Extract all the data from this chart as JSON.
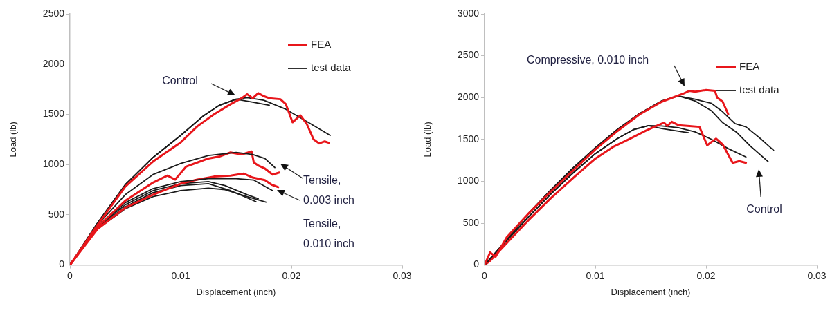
{
  "chart_data": [
    {
      "type": "line",
      "xlabel": "Displacement (inch)",
      "ylabel": "Load (lb)",
      "xlim": [
        0,
        0.03
      ],
      "xticks": [
        0,
        0.01,
        0.02,
        0.03
      ],
      "ylim": [
        0,
        2500
      ],
      "yticks": [
        0,
        500,
        1000,
        1500,
        2000,
        2500
      ],
      "grid": false,
      "legend": "top right",
      "marker": "none",
      "line_style": "solid",
      "annotations": [
        "Control",
        "Tensile,\n0.003 inch",
        "Tensile,\n0.010 inch"
      ],
      "series": [
        {
          "name": "FEA",
          "color": "#e8161b",
          "x": [
            0,
            0.0025,
            0.005,
            0.0075,
            0.01,
            0.0115,
            0.013,
            0.0145,
            0.0155,
            0.016,
            0.0165,
            0.017,
            0.0175,
            0.018,
            0.019,
            0.0195,
            0.0201,
            0.0208,
            0.0214,
            0.022,
            0.0225,
            0.023,
            0.0234
          ],
          "values": [
            0,
            400,
            780,
            1030,
            1220,
            1380,
            1500,
            1600,
            1660,
            1700,
            1660,
            1710,
            1680,
            1660,
            1650,
            1600,
            1420,
            1490,
            1400,
            1250,
            1210,
            1230,
            1215
          ]
        },
        {
          "name": "test data",
          "color": "#1a1a1a",
          "x": [
            0,
            0.0025,
            0.005,
            0.0075,
            0.01,
            0.012,
            0.0135,
            0.015,
            0.016,
            0.0175,
            0.0195,
            0.0215,
            0.0235
          ],
          "values": [
            0,
            420,
            800,
            1070,
            1290,
            1480,
            1590,
            1650,
            1665,
            1640,
            1550,
            1420,
            1290
          ]
        },
        {
          "color": "#1a1a1a",
          "x": [
            0,
            0.0025,
            0.005,
            0.0075,
            0.01,
            0.012,
            0.0135,
            0.015,
            0.0165,
            0.018
          ],
          "values": [
            0,
            420,
            800,
            1070,
            1290,
            1480,
            1590,
            1650,
            1620,
            1590
          ]
        },
        {
          "color": "#1a1a1a",
          "x": [
            0,
            0.0025,
            0.005,
            0.0075,
            0.01,
            0.0125,
            0.015,
            0.0165,
            0.0176,
            0.0185
          ],
          "values": [
            0,
            400,
            700,
            900,
            1010,
            1090,
            1120,
            1100,
            1060,
            970
          ]
        },
        {
          "color": "#e8161b",
          "x": [
            0,
            0.0025,
            0.005,
            0.0075,
            0.0088,
            0.0095,
            0.0105,
            0.0115,
            0.0125,
            0.0135,
            0.0145,
            0.0155,
            0.0164,
            0.0166,
            0.017,
            0.0176,
            0.0183,
            0.0189
          ],
          "values": [
            0,
            380,
            640,
            820,
            890,
            850,
            980,
            1020,
            1060,
            1080,
            1120,
            1100,
            1130,
            1020,
            990,
            960,
            900,
            920
          ]
        },
        {
          "color": "#1a1a1a",
          "x": [
            0,
            0.0025,
            0.005,
            0.0075,
            0.01,
            0.0125,
            0.015,
            0.0166,
            0.0183
          ],
          "values": [
            0,
            380,
            620,
            760,
            830,
            860,
            860,
            845,
            740
          ]
        },
        {
          "color": "#e8161b",
          "x": [
            0,
            0.0025,
            0.005,
            0.0075,
            0.01,
            0.0115,
            0.013,
            0.0145,
            0.0157,
            0.0165,
            0.0176,
            0.0182,
            0.0188
          ],
          "values": [
            0,
            360,
            570,
            700,
            810,
            850,
            880,
            890,
            910,
            870,
            845,
            800,
            775
          ]
        },
        {
          "color": "#1a1a1a",
          "x": [
            0,
            0.0025,
            0.005,
            0.0075,
            0.01,
            0.0125,
            0.014,
            0.016,
            0.0177
          ],
          "values": [
            0,
            360,
            560,
            680,
            740,
            765,
            750,
            680,
            625
          ]
        },
        {
          "color": "#1a1a1a",
          "x": [
            0,
            0.0025,
            0.005,
            0.0075,
            0.01,
            0.0125,
            0.014,
            0.016,
            0.017
          ],
          "values": [
            0,
            380,
            600,
            740,
            810,
            830,
            790,
            700,
            660
          ]
        },
        {
          "color": "#1a1a1a",
          "x": [
            0,
            0.0025,
            0.005,
            0.0075,
            0.01,
            0.0125,
            0.0145,
            0.0168
          ],
          "values": [
            0,
            370,
            580,
            720,
            790,
            810,
            740,
            630
          ]
        }
      ]
    },
    {
      "type": "line",
      "xlabel": "Displacement (inch)",
      "ylabel": "Load (lb)",
      "xlim": [
        0,
        0.03
      ],
      "xticks": [
        0,
        0.01,
        0.02,
        0.03
      ],
      "ylim": [
        0,
        3000
      ],
      "yticks": [
        0,
        500,
        1000,
        1500,
        2000,
        2500,
        3000
      ],
      "grid": false,
      "legend": "top right",
      "marker": "none",
      "line_style": "solid",
      "annotations": [
        "Compressive, 0.010 inch",
        "Control"
      ],
      "series": [
        {
          "name": "FEA",
          "color": "#e8161b",
          "x": [
            0,
            0.0005,
            0.001,
            0.002,
            0.004,
            0.006,
            0.008,
            0.01,
            0.012,
            0.014,
            0.016,
            0.018,
            0.0185,
            0.019,
            0.02,
            0.0208,
            0.021,
            0.0215,
            0.022
          ],
          "values": [
            0,
            150,
            100,
            330,
            620,
            880,
            1130,
            1380,
            1600,
            1800,
            1950,
            2050,
            2080,
            2070,
            2090,
            2080,
            2000,
            1950,
            1800
          ]
        },
        {
          "name": "test data",
          "color": "#1a1a1a",
          "x": [
            0,
            0.002,
            0.004,
            0.006,
            0.008,
            0.01,
            0.012,
            0.014,
            0.016,
            0.0175,
            0.019,
            0.0205,
            0.0215,
            0.0226,
            0.0236,
            0.025,
            0.0261
          ],
          "values": [
            0,
            300,
            620,
            900,
            1160,
            1400,
            1620,
            1810,
            1960,
            2020,
            1980,
            1930,
            1830,
            1690,
            1650,
            1500,
            1370
          ]
        },
        {
          "color": "#1a1a1a",
          "x": [
            0,
            0.002,
            0.004,
            0.006,
            0.008,
            0.01,
            0.012,
            0.014,
            0.016,
            0.0175,
            0.019,
            0.0205,
            0.0215,
            0.0228,
            0.024,
            0.0256
          ],
          "values": [
            0,
            300,
            620,
            900,
            1160,
            1400,
            1620,
            1810,
            1960,
            2020,
            1960,
            1840,
            1700,
            1580,
            1420,
            1235
          ]
        },
        {
          "color": "#e8161b",
          "x": [
            0,
            0.0005,
            0.002,
            0.004,
            0.006,
            0.008,
            0.01,
            0.0116,
            0.013,
            0.0145,
            0.0155,
            0.0162,
            0.0165,
            0.0169,
            0.0175,
            0.0185,
            0.0194,
            0.0201,
            0.0209,
            0.0215,
            0.0224,
            0.023,
            0.0236
          ],
          "values": [
            0,
            50,
            260,
            540,
            800,
            1040,
            1270,
            1410,
            1500,
            1600,
            1660,
            1700,
            1660,
            1710,
            1670,
            1660,
            1650,
            1430,
            1510,
            1440,
            1220,
            1240,
            1220
          ]
        },
        {
          "color": "#1a1a1a",
          "x": [
            0,
            0.002,
            0.004,
            0.006,
            0.008,
            0.01,
            0.012,
            0.0135,
            0.0148,
            0.016,
            0.0175,
            0.019,
            0.0205,
            0.022,
            0.0236
          ],
          "values": [
            0,
            290,
            580,
            850,
            1100,
            1330,
            1510,
            1620,
            1665,
            1660,
            1640,
            1590,
            1500,
            1390,
            1290
          ]
        },
        {
          "color": "#1a1a1a",
          "x": [
            0,
            0.002,
            0.004,
            0.006,
            0.008,
            0.01,
            0.012,
            0.0135,
            0.0148,
            0.016,
            0.0184
          ],
          "values": [
            0,
            290,
            580,
            850,
            1100,
            1330,
            1510,
            1620,
            1665,
            1630,
            1580
          ]
        }
      ]
    }
  ]
}
